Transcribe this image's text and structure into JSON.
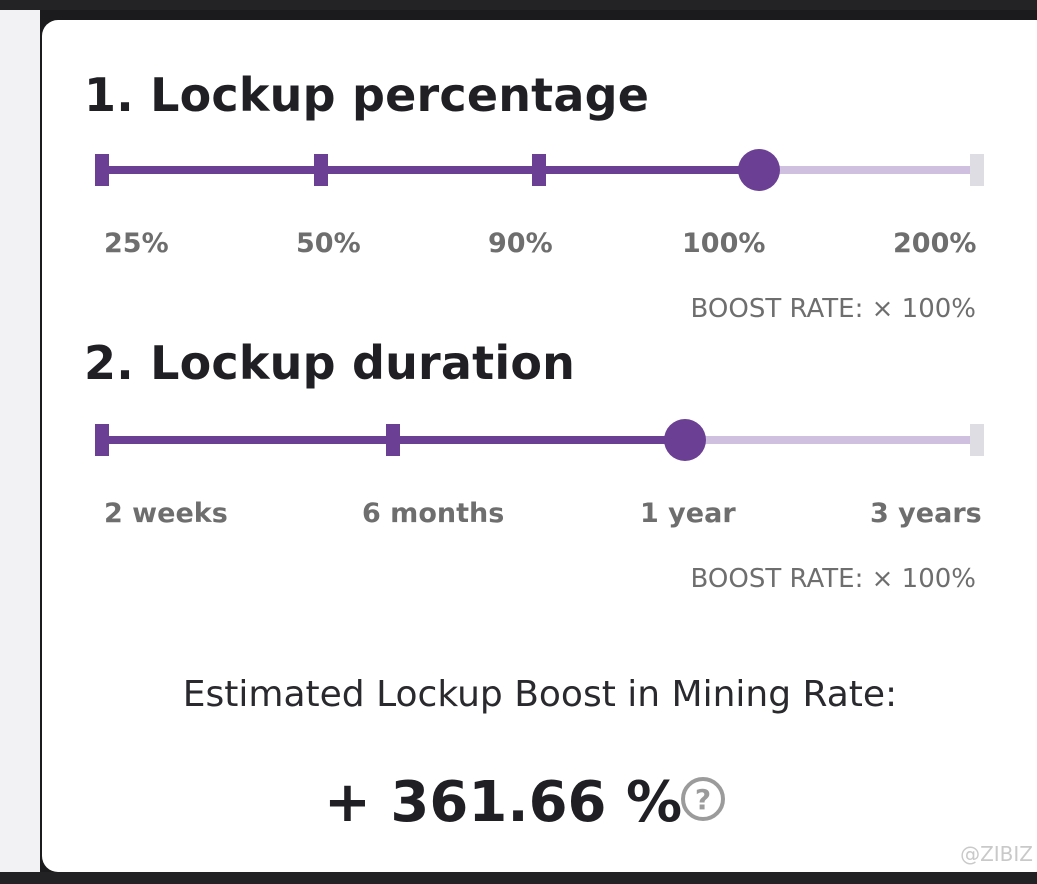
{
  "lockup_percentage": {
    "title": "1. Lockup percentage",
    "options": [
      "25%",
      "50%",
      "90%",
      "100%",
      "200%"
    ],
    "selected_index": 3,
    "boost_rate": "BOOST RATE: × 100%"
  },
  "lockup_duration": {
    "title": "2. Lockup duration",
    "options": [
      "2 weeks",
      "6 months",
      "1 year",
      "3 years"
    ],
    "selected_index": 2,
    "boost_rate": "BOOST RATE: × 100%"
  },
  "estimate": {
    "label": "Estimated Lockup Boost in Mining Rate:",
    "value": "+ 361.66 %",
    "help_glyph": "?"
  },
  "watermark": "@ZIBIZ",
  "colors": {
    "accent": "#6a3f94",
    "track": "#cfc0e0",
    "text": "#1f1f24",
    "muted": "#6e6e6e"
  }
}
